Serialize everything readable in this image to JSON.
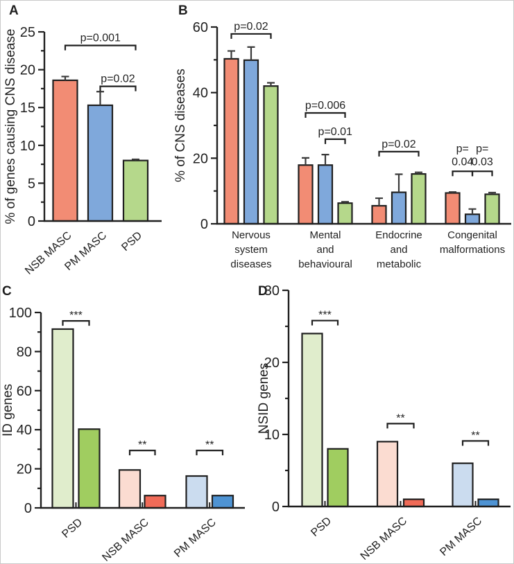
{
  "figure": {
    "ink": "#1f1f1f",
    "error_color": "#3a3a3a",
    "background": "#ffffff"
  },
  "chart_data": [
    {
      "panel": "A",
      "type": "bar",
      "title": "",
      "ylabel": "% of genes causing CNS disease",
      "ylim": [
        0,
        25
      ],
      "ytick_major": 5,
      "ytick_minor": 2.5,
      "grid": false,
      "categories": [
        "NSB MASC",
        "PM MASC",
        "PSD"
      ],
      "values": [
        18.6,
        15.3,
        8.0
      ],
      "errors": [
        0.5,
        1.8,
        0.15
      ],
      "bar_colors": [
        "#F28C74",
        "#7FA8DB",
        "#B5D88B"
      ],
      "annotations": [
        {
          "label": "p=0.001",
          "from": 0,
          "to": 2,
          "y": 23.2
        },
        {
          "label": "p=0.02",
          "from": 1,
          "to": 2,
          "y": 17.8
        }
      ]
    },
    {
      "panel": "B",
      "type": "grouped-bar",
      "title": "",
      "ylabel": "% of CNS diseases",
      "ylim": [
        0,
        60
      ],
      "ytick_major": 20,
      "ytick_minor": 10,
      "grid": false,
      "categories": [
        [
          "Nervous",
          "system",
          "diseases"
        ],
        [
          "Mental",
          "and",
          "behavioural"
        ],
        [
          "Endocrine",
          "and",
          "metabolic"
        ],
        [
          "Congenital",
          "malformations"
        ]
      ],
      "series": [
        {
          "name": "NSB MASC",
          "color": "#F28C74",
          "values": [
            50.3,
            17.9,
            5.5,
            9.4
          ],
          "errors": [
            2.4,
            2.2,
            2.3,
            0.3
          ]
        },
        {
          "name": "PM MASC",
          "color": "#7FA8DB",
          "values": [
            49.9,
            17.9,
            9.6,
            2.9
          ],
          "errors": [
            4.0,
            3.2,
            5.5,
            1.6
          ]
        },
        {
          "name": "PSD",
          "color": "#B5D88B",
          "values": [
            42.0,
            6.3,
            15.2,
            9.0
          ],
          "errors": [
            1.0,
            0.4,
            0.5,
            0.5
          ]
        }
      ],
      "annotations": [
        {
          "label": "p=0.02",
          "group": 0,
          "from": 0,
          "to": 2,
          "y": 57.9
        },
        {
          "label": "p=0.006",
          "group": 1,
          "from": 0,
          "to": 2,
          "y": 33.8
        },
        {
          "label": "p=0.01",
          "group": 1,
          "from": 1,
          "to": 2,
          "y": 25.8
        },
        {
          "label": "p=0.02",
          "group": 2,
          "from": 0,
          "to": 2,
          "y": 22.0
        },
        {
          "label_lines": [
            "p=",
            "0.04"
          ],
          "group": 3,
          "from": 0,
          "to": 1,
          "y": 16.0
        },
        {
          "label_lines": [
            "p=",
            "0.03"
          ],
          "group": 3,
          "from": 1,
          "to": 2,
          "y": 16.0
        }
      ]
    },
    {
      "panel": "C",
      "type": "paired-bar",
      "title": "",
      "ylabel": "ID genes",
      "ylim": [
        0,
        100
      ],
      "ytick_major": 20,
      "ytick_minor": 10,
      "grid": false,
      "categories": [
        "PSD",
        "NSB MASC",
        "PM MASC"
      ],
      "pairs": [
        {
          "colors": [
            "#E0EDCC",
            "#A0CD60"
          ],
          "values": [
            91.5,
            40.3
          ]
        },
        {
          "colors": [
            "#FBDCD1",
            "#F06B58"
          ],
          "values": [
            19.4,
            6.3
          ]
        },
        {
          "colors": [
            "#CBDCEF",
            "#4E93D3"
          ],
          "values": [
            16.3,
            6.3
          ]
        }
      ],
      "annotations": [
        {
          "label": "***",
          "pair": 0,
          "y": 95.7
        },
        {
          "label": "**",
          "pair": 1,
          "y": 29.4
        },
        {
          "label": "**",
          "pair": 2,
          "y": 29.4
        }
      ]
    },
    {
      "panel": "D",
      "type": "paired-bar",
      "title": "",
      "ylabel": "NSID genes",
      "ylim": [
        0,
        30
      ],
      "ytick_major": 10,
      "ytick_minor": 5,
      "grid": false,
      "categories": [
        "PSD",
        "NSB MASC",
        "PM MASC"
      ],
      "pairs": [
        {
          "colors": [
            "#E0EDCC",
            "#A0CD60"
          ],
          "values": [
            24,
            8
          ]
        },
        {
          "colors": [
            "#FBDCD1",
            "#F06B58"
          ],
          "values": [
            9,
            1
          ]
        },
        {
          "colors": [
            "#CBDCEF",
            "#4E93D3"
          ],
          "values": [
            6,
            1
          ]
        }
      ],
      "annotations": [
        {
          "label": "***",
          "pair": 0,
          "y": 25.8
        },
        {
          "label": "**",
          "pair": 1,
          "y": 11.5
        },
        {
          "label": "**",
          "pair": 2,
          "y": 9.1
        }
      ]
    }
  ]
}
